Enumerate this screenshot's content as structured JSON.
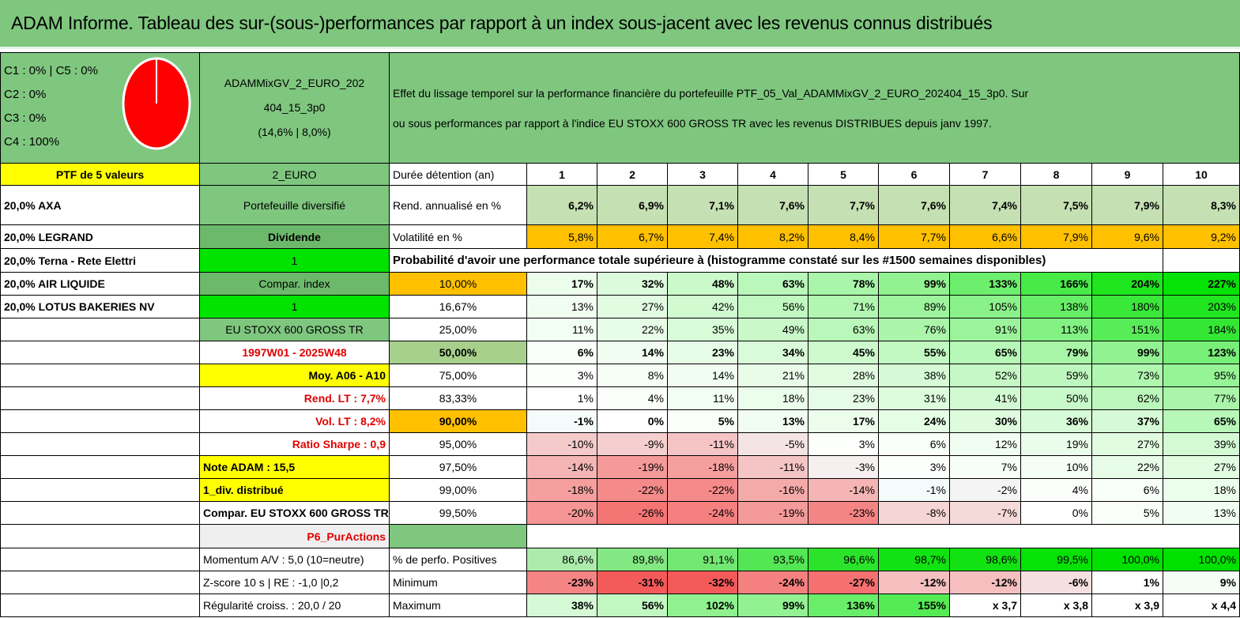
{
  "title": "ADAM Informe. Tableau des sur-(sous-)performances par rapport à un index sous-jacent avec les revenus connus distribués",
  "pie": {
    "legend": [
      "C1 : 0% | C5 : 0%",
      "C2 : 0%",
      "C3 : 0%",
      "C4 : 100%"
    ],
    "fill_color": "#ff0000",
    "value_c4": 100
  },
  "fund": {
    "name_line1": "ADAMMixGV_2_EURO_202",
    "name_line2": "404_15_3p0",
    "name_line3": "(14,6% | 8,0%)"
  },
  "description_line1": "Effet du lissage temporel sur la performance financière du portefeuille PTF_05_Val_ADAMMixGV_2_EURO_202404_15_3p0. Sur",
  "description_line2": "ou sous performances par rapport à l'indice EU STOXX 600 GROSS TR avec les revenus DISTRIBUES depuis janv 1997.",
  "col1": [
    "PTF de 5 valeurs",
    "20,0% AXA",
    "20,0% LEGRAND",
    "20,0% Terna - Rete Elettri",
    "20,0% AIR LIQUIDE",
    "20,0% LOTUS BAKERIES NV"
  ],
  "col2": {
    "code": "2_EURO",
    "type": "Portefeuille diversifié",
    "style": "Dividende",
    "val1": "1",
    "compar": "Compar. index",
    "val2": "1",
    "index": "EU STOXX 600 GROSS TR",
    "period": "1997W01 - 2025W48",
    "moy": "Moy. A06 - A10",
    "rend": "Rend. LT : 7,7%",
    "vol": "Vol. LT : 8,2%",
    "sharpe": "Ratio Sharpe : 0,9",
    "note": "Note ADAM : 15,5",
    "div": "1_div. distribué",
    "compar2": "Compar. EU STOXX 600 GROSS TR",
    "p6": "P6_PurActions",
    "momentum": "Momentum A/V : 5,0 (10=neutre)",
    "zscore": "Z-score 10 s | RE : -1,0 |0,2",
    "regul": "Régularité croiss. : 20,0 / 20"
  },
  "table": {
    "duration_label": "Durée détention (an)",
    "years": [
      "1",
      "2",
      "3",
      "4",
      "5",
      "6",
      "7",
      "8",
      "9",
      "10"
    ],
    "rend_label": "Rend. annualisé en %",
    "rend": [
      "6,2%",
      "6,9%",
      "7,1%",
      "7,6%",
      "7,7%",
      "7,6%",
      "7,4%",
      "7,5%",
      "7,9%",
      "8,3%"
    ],
    "vol_label": "Volatilité en %",
    "vol": [
      "5,8%",
      "6,7%",
      "7,4%",
      "8,2%",
      "8,4%",
      "7,7%",
      "6,6%",
      "7,9%",
      "9,6%",
      "9,2%"
    ],
    "prob_label": "Probabilité d'avoir une performance totale supérieure à (histogramme constaté sur les #1500 semaines disponibles)",
    "prob_rows": [
      {
        "p": "10,00%",
        "v": [
          "17%",
          "32%",
          "48%",
          "63%",
          "78%",
          "99%",
          "133%",
          "166%",
          "204%",
          "227%"
        ]
      },
      {
        "p": "16,67%",
        "v": [
          "13%",
          "27%",
          "42%",
          "56%",
          "71%",
          "89%",
          "105%",
          "138%",
          "180%",
          "203%"
        ]
      },
      {
        "p": "25,00%",
        "v": [
          "11%",
          "22%",
          "35%",
          "49%",
          "63%",
          "76%",
          "91%",
          "113%",
          "151%",
          "184%"
        ]
      },
      {
        "p": "50,00%",
        "v": [
          "6%",
          "14%",
          "23%",
          "34%",
          "45%",
          "55%",
          "65%",
          "79%",
          "99%",
          "123%"
        ]
      },
      {
        "p": "75,00%",
        "v": [
          "3%",
          "8%",
          "14%",
          "21%",
          "28%",
          "38%",
          "52%",
          "59%",
          "73%",
          "95%"
        ]
      },
      {
        "p": "83,33%",
        "v": [
          "1%",
          "4%",
          "11%",
          "18%",
          "23%",
          "31%",
          "41%",
          "50%",
          "62%",
          "77%"
        ]
      },
      {
        "p": "90,00%",
        "v": [
          "-1%",
          "0%",
          "5%",
          "13%",
          "17%",
          "24%",
          "30%",
          "36%",
          "37%",
          "65%"
        ]
      },
      {
        "p": "95,00%",
        "v": [
          "-10%",
          "-9%",
          "-11%",
          "-5%",
          "3%",
          "6%",
          "12%",
          "19%",
          "27%",
          "39%"
        ]
      },
      {
        "p": "97,50%",
        "v": [
          "-14%",
          "-19%",
          "-18%",
          "-11%",
          "-3%",
          "3%",
          "7%",
          "10%",
          "22%",
          "27%"
        ]
      },
      {
        "p": "99,00%",
        "v": [
          "-18%",
          "-22%",
          "-22%",
          "-16%",
          "-14%",
          "-1%",
          "-2%",
          "4%",
          "6%",
          "18%"
        ]
      },
      {
        "p": "99,50%",
        "v": [
          "-20%",
          "-26%",
          "-24%",
          "-19%",
          "-23%",
          "-8%",
          "-7%",
          "0%",
          "5%",
          "13%"
        ]
      }
    ],
    "pos_label": "% de perfo. Positives",
    "pos": [
      "86,6%",
      "89,8%",
      "91,1%",
      "93,5%",
      "96,6%",
      "98,7%",
      "98,6%",
      "99,5%",
      "100,0%",
      "100,0%"
    ],
    "min_label": "Minimum",
    "min": [
      "-23%",
      "-31%",
      "-32%",
      "-24%",
      "-27%",
      "-12%",
      "-12%",
      "-6%",
      "1%",
      "9%"
    ],
    "max_label": "Maximum",
    "max": [
      "38%",
      "56%",
      "102%",
      "99%",
      "136%",
      "155%",
      "x 3,7",
      "x 3,8",
      "x 3,9",
      "x 4,4"
    ]
  }
}
